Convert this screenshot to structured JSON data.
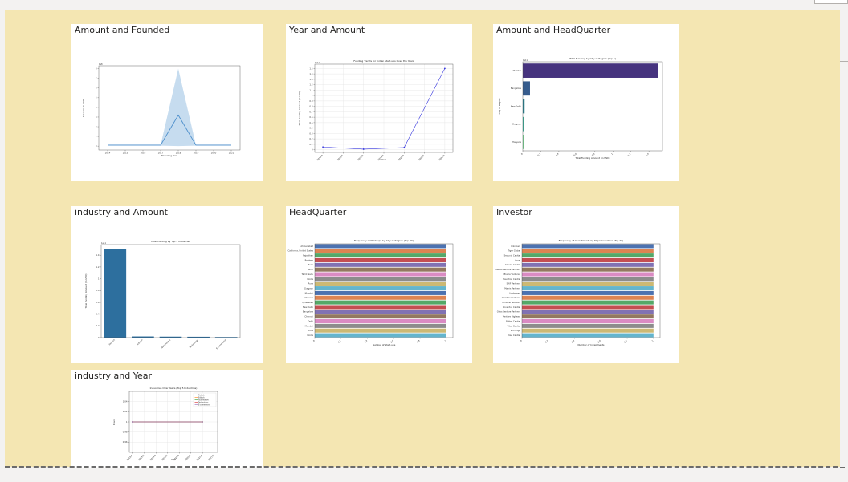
{
  "report": {
    "background_color": "#f4e6b2",
    "visuals": [
      {
        "title": "Amount and Founded"
      },
      {
        "title": "Year and Amount"
      },
      {
        "title": "Amount and HeadQuarter"
      },
      {
        "title": "industry and Amount"
      },
      {
        "title": "HeadQuarter"
      },
      {
        "title": "Investor"
      },
      {
        "title": "industry and Year"
      }
    ]
  },
  "chart_data": [
    {
      "type": "area",
      "title": "",
      "xlabel": "Founding Year",
      "ylabel": "Amount (in USD)",
      "offset_text": "1e8",
      "x": [
        2014,
        2015,
        2016,
        2017,
        2018,
        2019,
        2020,
        2021
      ],
      "xticks": [
        "2014",
        "2015",
        "2016",
        "2017",
        "2018",
        "2019",
        "2020",
        "2021"
      ],
      "xlim": [
        2013.5,
        2021.5
      ],
      "ylim": [
        -0.4,
        8.3
      ],
      "yticks": [
        0,
        1,
        2,
        3,
        4,
        5,
        6,
        7,
        8
      ],
      "values": [
        0.1,
        0.1,
        0.1,
        0.1,
        3.2,
        0.1,
        0.1,
        0.1
      ],
      "band_upper": [
        0.1,
        0.1,
        0.1,
        0.1,
        8.0,
        0.1,
        0.1,
        0.1
      ],
      "band_lower": [
        0.05,
        0.05,
        0.05,
        0.05,
        0.0,
        0.05,
        0.05,
        0.05
      ],
      "line_color": "#4c8ecb",
      "band_color": "#c6dcef",
      "grid": false
    },
    {
      "type": "line",
      "title": "Funding Trends for Indian start-ups Over the Years",
      "xlabel": "Year",
      "ylabel": "Total Funding Amount (in USD)",
      "offset_text": "1e11",
      "x": [
        2018,
        2019,
        2020,
        2021
      ],
      "xticks": [
        "2018.0",
        "2018.5",
        "2019.0",
        "2019.5",
        "2020.0",
        "2020.5",
        "2021.0"
      ],
      "xtick_values": [
        2018,
        2018.5,
        2019,
        2019.5,
        2020,
        2020.5,
        2021
      ],
      "xlim": [
        2017.8,
        2021.2
      ],
      "ylim": [
        -0.05,
        1.58
      ],
      "yticks": [
        0,
        0.1,
        0.2,
        0.3,
        0.4,
        0.5,
        0.6,
        0.7,
        0.8,
        0.9,
        1.0,
        1.1,
        1.2,
        1.3,
        1.4,
        1.5
      ],
      "values": [
        0.05,
        0.01,
        0.04,
        1.5
      ],
      "line_color": "#3333dd",
      "grid": true
    },
    {
      "type": "bar",
      "orientation": "horizontal",
      "title": "Total Funding by City or Region (Top 5)",
      "xlabel": "Total Funding Amount (in USD)",
      "ylabel": "City or Region",
      "offset_text": "1e11",
      "categories": [
        "Mumbai",
        "Bangalore",
        "New Delhi",
        "Gurgaon",
        "Haryana"
      ],
      "values": [
        1.5,
        0.08,
        0.02,
        0.008,
        0.005
      ],
      "colors": [
        "#46337e",
        "#365c8d",
        "#277f8e",
        "#1fa187",
        "#4ac16d"
      ],
      "xlim": [
        0,
        1.55
      ],
      "xticks": [
        0,
        0.2,
        0.4,
        0.6,
        0.8,
        1.0,
        1.2,
        1.4
      ],
      "grid": false
    },
    {
      "type": "bar",
      "title": "Total Funding by Top 5 Industries",
      "xlabel": "",
      "ylabel": "Total Funding Amount (in USD)",
      "offset_text": "1e11",
      "categories": [
        "Fintech",
        "Edtech",
        "Automotive",
        "Technology",
        "E-commerce"
      ],
      "values": [
        1.5,
        0.02,
        0.017,
        0.015,
        0.01
      ],
      "color": "#2d6f9e",
      "ylim": [
        0,
        1.58
      ],
      "yticks": [
        0,
        0.2,
        0.4,
        0.6,
        0.8,
        1.0,
        1.2,
        1.4
      ],
      "grid": false
    },
    {
      "type": "bar",
      "orientation": "horizontal",
      "title": "Frequency of Start-ups by City or Region (Top 20)",
      "xlabel": "Number of Start-ups",
      "ylabel": "",
      "categories": [
        "Ahmedabad",
        "California, United States",
        "Rajasthan",
        "Pradesh",
        "Pune",
        "Tamil",
        "Tamil Nadu",
        "Noida",
        "Pune",
        "Gurgaon",
        "Mumbai",
        "Chennai",
        "Hyderabad",
        "New Delhi",
        "Bangalore",
        "Chennai",
        "Delhi",
        "Mumbai",
        "Pune",
        "Noida"
      ],
      "values": [
        1,
        1,
        1,
        1,
        1,
        1,
        1,
        1,
        1,
        1,
        1,
        1,
        1,
        1,
        1,
        1,
        1,
        1,
        1,
        1
      ],
      "colors": [
        "#4c72b0",
        "#dd8452",
        "#55a868",
        "#c44e52",
        "#8172b3",
        "#937860",
        "#da8bc3",
        "#8c8c8c",
        "#ccb974",
        "#64b5cd",
        "#4c72b0",
        "#dd8452",
        "#55a868",
        "#c44e52",
        "#8172b3",
        "#937860",
        "#da8bc3",
        "#8c8c8c",
        "#ccb974",
        "#64b5cd"
      ],
      "xlim": [
        0,
        1.05
      ],
      "xticks": [
        0,
        0.2,
        0.4,
        0.6,
        0.8,
        1.0
      ],
      "grid": false
    },
    {
      "type": "bar",
      "orientation": "horizontal",
      "title": "Frequency of Investments by Major Investors (Top 20)",
      "xlabel": "Number of Investments",
      "ylabel": "",
      "categories": [
        "Unknown",
        "Tiger Global",
        "Sequoia Capital",
        "Accel",
        "Kalaari Capital",
        "Nexus Venture Partners",
        "Blume Ventures",
        "Elevation Capital",
        "SAIF Partners",
        "Matrix Partners",
        "Lightspeed",
        "Chiratae Ventures",
        "Omidyar Network",
        "Inventus Capital",
        "Orios Venture Partners",
        "Venture Highway",
        "Better Capital",
        "Titan Capital",
        "Info Edge",
        "Kae Capital"
      ],
      "values": [
        1,
        1,
        1,
        1,
        1,
        1,
        1,
        1,
        1,
        1,
        1,
        1,
        1,
        1,
        1,
        1,
        1,
        1,
        1,
        1
      ],
      "colors": [
        "#4c72b0",
        "#dd8452",
        "#55a868",
        "#c44e52",
        "#8172b3",
        "#937860",
        "#da8bc3",
        "#8c8c8c",
        "#ccb974",
        "#64b5cd",
        "#4c72b0",
        "#dd8452",
        "#55a868",
        "#c44e52",
        "#8172b3",
        "#937860",
        "#da8bc3",
        "#8c8c8c",
        "#ccb974",
        "#64b5cd"
      ],
      "xlim": [
        0,
        1.05
      ],
      "xticks": [
        0,
        0.2,
        0.4,
        0.6,
        0.8,
        1.0
      ],
      "grid": false
    },
    {
      "type": "line",
      "title": "Industries Over Years (Top 5 Industries)",
      "xlabel": "Year",
      "ylabel": "Count",
      "x": [
        2018,
        2021
      ],
      "xticks": [
        "2018.0",
        "2018.5",
        "2019.0",
        "2019.5",
        "2020.0",
        "2020.5",
        "2021.0",
        "2021.5"
      ],
      "xtick_values": [
        2018,
        2018.5,
        2019,
        2019.5,
        2020,
        2020.5,
        2021,
        2021.5
      ],
      "xlim": [
        2017.85,
        2021.65
      ],
      "ylim": [
        0.94,
        1.06
      ],
      "yticks": [
        0.96,
        0.98,
        1.0,
        1.02,
        1.04
      ],
      "series": [
        {
          "name": "Fintech",
          "values": [
            1,
            1
          ],
          "color": "#1f77b4"
        },
        {
          "name": "Edtech",
          "values": [
            1,
            1
          ],
          "color": "#ff7f0e"
        },
        {
          "name": "Automotive",
          "values": [
            1,
            1
          ],
          "color": "#2ca02c"
        },
        {
          "name": "Technology",
          "values": [
            1,
            1
          ],
          "color": "#d62728"
        },
        {
          "name": "E-commerce",
          "values": [
            1,
            1
          ],
          "color": "#9467bd"
        }
      ],
      "legend": "top-right",
      "grid": true
    }
  ]
}
